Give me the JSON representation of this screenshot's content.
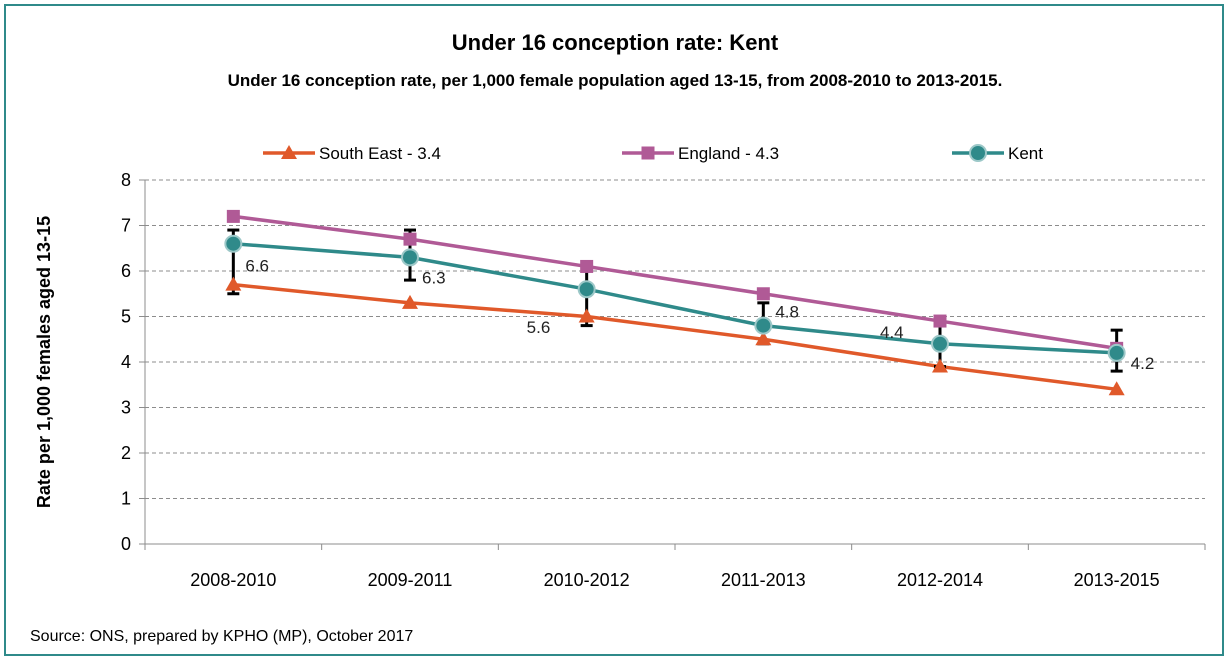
{
  "chart_data": {
    "type": "line",
    "title": "Under 16 conception rate: Kent",
    "subtitle": "Under 16 conception rate, per 1,000 female population aged 13-15, from 2008-2010 to 2013-2015.",
    "ylabel": "Rate per 1,000 females aged 13-15",
    "xlabel": "",
    "categories": [
      "2008-2010",
      "2009-2011",
      "2010-2012",
      "2011-2013",
      "2012-2014",
      "2013-2015"
    ],
    "ylim": [
      0,
      8
    ],
    "yticks": [
      0,
      1,
      2,
      3,
      4,
      5,
      6,
      7,
      8
    ],
    "grid": "horizontal dashed",
    "legend_position": "top",
    "series": [
      {
        "name": "South East - 3.4",
        "color": "#e0592a",
        "marker": "triangle",
        "values": [
          5.7,
          5.3,
          5.0,
          4.5,
          3.9,
          3.4
        ]
      },
      {
        "name": "England - 4.3",
        "color": "#b05a96",
        "marker": "square",
        "values": [
          7.2,
          6.7,
          6.1,
          5.5,
          4.9,
          4.3
        ]
      },
      {
        "name": "Kent",
        "color": "#2f8a8a",
        "marker": "circle",
        "values": [
          6.6,
          6.3,
          5.6,
          4.8,
          4.4,
          4.2
        ],
        "error_bars": [
          [
            5.5,
            6.9
          ],
          [
            5.8,
            6.9
          ],
          [
            4.8,
            6.0
          ],
          [
            4.4,
            5.3
          ],
          [
            3.9,
            4.8
          ],
          [
            3.8,
            4.7
          ]
        ],
        "data_labels": [
          "6.6",
          "6.3",
          "5.6",
          "4.8",
          "4.4",
          "4.2"
        ]
      }
    ]
  },
  "source_text": "Source: ONS, prepared by KPHO (MP), October 2017"
}
